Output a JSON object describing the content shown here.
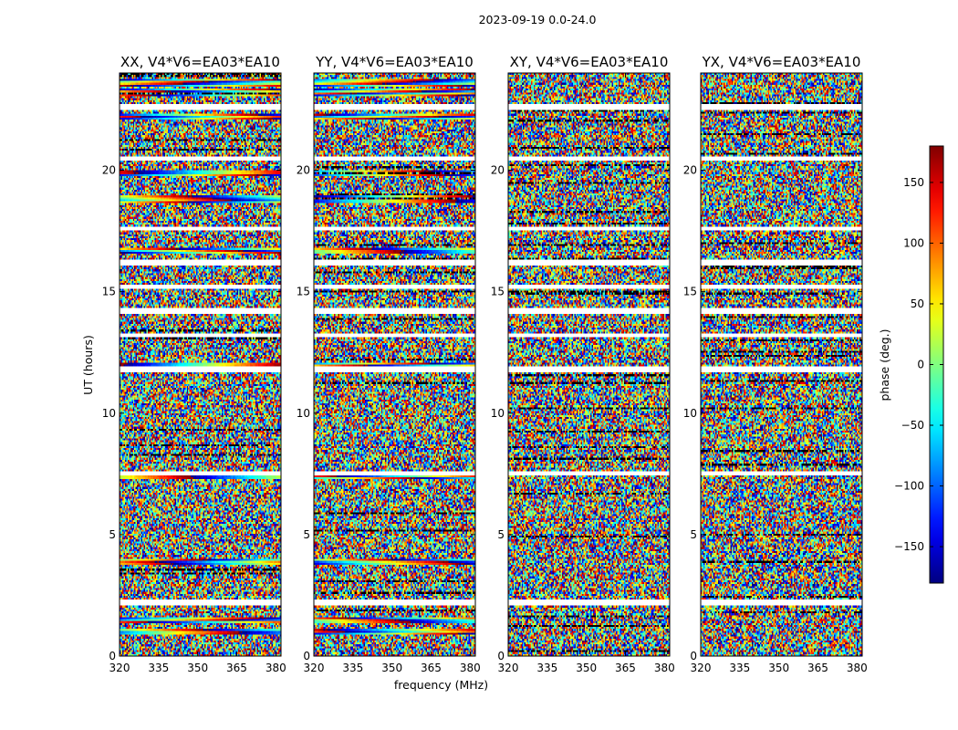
{
  "chart_data": {
    "type": "heatmap",
    "suptitle": "2023-09-19 0.0-24.0",
    "xlabel": "frequency (MHz)",
    "ylabel": "UT (hours)",
    "xlim": [
      320,
      382
    ],
    "ylim": [
      0,
      24
    ],
    "xticks": [
      "320",
      "335",
      "350",
      "365",
      "380"
    ],
    "xtick_values": [
      320,
      335,
      350,
      365,
      380
    ],
    "yticks": [
      "0",
      "5",
      "10",
      "15",
      "20"
    ],
    "ytick_values": [
      0,
      5,
      10,
      15,
      20
    ],
    "panels": [
      {
        "title": "XX, V4*V6=EA03*EA10",
        "polarization": "XX",
        "coherent": true
      },
      {
        "title": "YY, V4*V6=EA03*EA10",
        "polarization": "YY",
        "coherent": true
      },
      {
        "title": "XY, V4*V6=EA03*EA10",
        "polarization": "XY",
        "coherent": false
      },
      {
        "title": "YX, V4*V6=EA03*EA10",
        "polarization": "YX",
        "coherent": false
      }
    ],
    "colorbar": {
      "label": "phase (deg.)",
      "range": [
        -180,
        180
      ],
      "ticks": [
        "150",
        "100",
        "50",
        "0",
        "−50",
        "−100",
        "−150"
      ],
      "tick_values": [
        150,
        100,
        50,
        0,
        -50,
        -100,
        -150
      ],
      "colormap": "jet"
    },
    "flagged_gaps_hours": [
      2.2,
      7.5,
      11.8,
      13.2,
      14.2,
      15.2,
      16.2,
      17.6,
      20.5,
      22.6
    ],
    "coherent_bands_hours": [
      1.0,
      1.5,
      3.9,
      7.4,
      11.95,
      16.7,
      18.8,
      19.9,
      22.2,
      23.2,
      23.6
    ]
  }
}
